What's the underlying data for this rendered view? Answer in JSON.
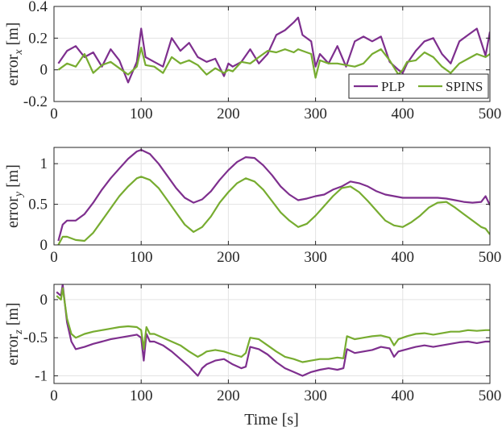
{
  "figure": {
    "x_axis_label": "Time [s]"
  },
  "chart_data": [
    {
      "type": "line",
      "ylabel_base": "error",
      "ylabel_sub": "x",
      "ylabel_unit": "[m]",
      "xlim": [
        0,
        500
      ],
      "ylim": [
        -0.2,
        0.4
      ],
      "xticks": [
        0,
        100,
        200,
        300,
        400,
        500
      ],
      "yticks": [
        -0.2,
        0,
        0.2,
        0.4
      ],
      "ytick_labels": [
        "-0.2",
        "0",
        "0.2",
        "0.4"
      ],
      "grid": true,
      "legend": {
        "position": "bottom-right",
        "entries": [
          "PLP",
          "SPINS"
        ]
      },
      "x": [
        5,
        15,
        25,
        35,
        45,
        55,
        65,
        75,
        85,
        95,
        100,
        105,
        115,
        125,
        135,
        145,
        155,
        165,
        175,
        185,
        195,
        200,
        205,
        215,
        225,
        235,
        245,
        255,
        265,
        275,
        280,
        285,
        295,
        300,
        305,
        315,
        325,
        335,
        345,
        355,
        365,
        375,
        385,
        395,
        400,
        405,
        415,
        425,
        435,
        445,
        455,
        465,
        475,
        485,
        495,
        500
      ],
      "series": [
        {
          "name": "PLP",
          "color": "#7E2F8E",
          "values": [
            0.04,
            0.12,
            0.15,
            0.08,
            0.11,
            0.02,
            0.13,
            0.06,
            -0.08,
            0.05,
            0.26,
            0.08,
            0.05,
            0.02,
            0.2,
            0.12,
            0.17,
            0.08,
            0.05,
            0.07,
            -0.04,
            0.04,
            0.02,
            0.05,
            0.13,
            0.04,
            0.1,
            0.22,
            0.25,
            0.3,
            0.33,
            0.22,
            0.18,
            0.02,
            0.1,
            0.04,
            0.15,
            0.02,
            0.18,
            0.21,
            0.18,
            0.21,
            0.05,
            0.0,
            -0.02,
            0.04,
            0.12,
            0.18,
            0.2,
            0.1,
            0.04,
            0.18,
            0.22,
            0.26,
            0.09,
            0.24
          ]
        },
        {
          "name": "SPINS",
          "color": "#77AC30",
          "values": [
            0.0,
            0.04,
            0.02,
            0.1,
            -0.02,
            0.03,
            0.05,
            0.01,
            -0.03,
            0.02,
            0.14,
            0.03,
            0.02,
            -0.02,
            0.08,
            0.04,
            0.06,
            0.03,
            -0.03,
            0.01,
            -0.02,
            0.0,
            -0.01,
            0.05,
            0.04,
            0.08,
            0.12,
            0.11,
            0.13,
            0.11,
            0.13,
            0.12,
            0.1,
            -0.05,
            0.06,
            0.04,
            0.04,
            0.03,
            0.02,
            0.04,
            0.1,
            0.13,
            0.06,
            -0.03,
            0.0,
            0.05,
            0.06,
            0.11,
            0.08,
            0.02,
            -0.02,
            0.04,
            0.07,
            0.1,
            0.08,
            0.1
          ]
        }
      ]
    },
    {
      "type": "line",
      "ylabel_base": "error",
      "ylabel_sub": "y",
      "ylabel_unit": "[m]",
      "xlim": [
        0,
        500
      ],
      "ylim": [
        0,
        1.2
      ],
      "xticks": [
        0,
        100,
        200,
        300,
        400,
        500
      ],
      "yticks": [
        0,
        0.5,
        1
      ],
      "ytick_labels": [
        "0",
        "0.5",
        "1"
      ],
      "grid": true,
      "x": [
        5,
        10,
        15,
        25,
        35,
        45,
        55,
        65,
        75,
        85,
        95,
        100,
        110,
        120,
        130,
        140,
        150,
        160,
        170,
        180,
        190,
        200,
        210,
        220,
        230,
        240,
        250,
        260,
        270,
        280,
        290,
        300,
        310,
        320,
        330,
        340,
        350,
        360,
        370,
        380,
        390,
        400,
        410,
        420,
        430,
        440,
        450,
        460,
        470,
        480,
        490,
        495,
        500
      ],
      "series": [
        {
          "name": "PLP",
          "color": "#7E2F8E",
          "values": [
            0.05,
            0.25,
            0.3,
            0.3,
            0.38,
            0.52,
            0.68,
            0.82,
            0.94,
            1.06,
            1.15,
            1.17,
            1.12,
            1.0,
            0.85,
            0.7,
            0.58,
            0.52,
            0.56,
            0.66,
            0.8,
            0.92,
            1.02,
            1.08,
            1.07,
            0.98,
            0.86,
            0.72,
            0.62,
            0.55,
            0.57,
            0.6,
            0.62,
            0.68,
            0.72,
            0.78,
            0.76,
            0.72,
            0.66,
            0.62,
            0.6,
            0.58,
            0.58,
            0.58,
            0.58,
            0.58,
            0.57,
            0.55,
            0.53,
            0.52,
            0.53,
            0.6,
            0.49
          ]
        },
        {
          "name": "SPINS",
          "color": "#77AC30",
          "values": [
            0.0,
            0.1,
            0.1,
            0.06,
            0.05,
            0.15,
            0.3,
            0.45,
            0.6,
            0.72,
            0.82,
            0.84,
            0.8,
            0.7,
            0.55,
            0.4,
            0.25,
            0.16,
            0.22,
            0.35,
            0.52,
            0.65,
            0.76,
            0.82,
            0.78,
            0.68,
            0.54,
            0.4,
            0.3,
            0.22,
            0.26,
            0.36,
            0.48,
            0.6,
            0.7,
            0.72,
            0.65,
            0.54,
            0.42,
            0.3,
            0.24,
            0.22,
            0.28,
            0.36,
            0.46,
            0.52,
            0.53,
            0.46,
            0.38,
            0.3,
            0.22,
            0.2,
            0.13
          ]
        }
      ]
    },
    {
      "type": "line",
      "ylabel_base": "error",
      "ylabel_sub": "z",
      "ylabel_unit": "[m]",
      "xlim": [
        0,
        500
      ],
      "ylim": [
        -1.1,
        0.2
      ],
      "xticks": [
        0,
        100,
        200,
        300,
        400,
        500
      ],
      "xtick_labels": [
        "0",
        "100",
        "200",
        "300",
        "400",
        "500"
      ],
      "yticks": [
        -1,
        -0.5,
        0
      ],
      "ytick_labels": [
        "-1",
        "-0.5",
        "0"
      ],
      "grid": true,
      "x": [
        3,
        8,
        10,
        15,
        20,
        25,
        35,
        45,
        55,
        65,
        75,
        85,
        95,
        100,
        103,
        106,
        110,
        115,
        125,
        135,
        145,
        155,
        165,
        170,
        175,
        185,
        195,
        205,
        215,
        220,
        225,
        235,
        245,
        255,
        265,
        275,
        285,
        295,
        305,
        315,
        325,
        332,
        336,
        345,
        355,
        365,
        375,
        385,
        390,
        395,
        405,
        415,
        425,
        435,
        445,
        455,
        465,
        475,
        485,
        495,
        500
      ],
      "series": [
        {
          "name": "PLP",
          "color": "#7E2F8E",
          "values": [
            0.1,
            0.05,
            0.2,
            -0.3,
            -0.55,
            -0.65,
            -0.62,
            -0.58,
            -0.55,
            -0.52,
            -0.5,
            -0.48,
            -0.46,
            -0.5,
            -0.8,
            -0.45,
            -0.55,
            -0.55,
            -0.6,
            -0.68,
            -0.78,
            -0.88,
            -1.0,
            -0.9,
            -0.85,
            -0.8,
            -0.78,
            -0.85,
            -0.9,
            -0.88,
            -0.62,
            -0.65,
            -0.72,
            -0.82,
            -0.9,
            -0.95,
            -1.0,
            -0.95,
            -0.92,
            -0.9,
            -0.92,
            -0.9,
            -0.65,
            -0.7,
            -0.68,
            -0.66,
            -0.62,
            -0.64,
            -0.75,
            -0.68,
            -0.65,
            -0.62,
            -0.6,
            -0.62,
            -0.6,
            -0.58,
            -0.56,
            -0.55,
            -0.57,
            -0.55,
            -0.55
          ]
        },
        {
          "name": "SPINS",
          "color": "#77AC30",
          "values": [
            0.05,
            0.0,
            0.15,
            -0.25,
            -0.45,
            -0.5,
            -0.45,
            -0.42,
            -0.4,
            -0.38,
            -0.36,
            -0.35,
            -0.36,
            -0.4,
            -0.65,
            -0.36,
            -0.45,
            -0.45,
            -0.5,
            -0.55,
            -0.6,
            -0.68,
            -0.75,
            -0.72,
            -0.68,
            -0.66,
            -0.68,
            -0.72,
            -0.75,
            -0.7,
            -0.5,
            -0.52,
            -0.6,
            -0.68,
            -0.75,
            -0.78,
            -0.82,
            -0.8,
            -0.78,
            -0.78,
            -0.76,
            -0.77,
            -0.48,
            -0.52,
            -0.5,
            -0.48,
            -0.47,
            -0.5,
            -0.6,
            -0.52,
            -0.48,
            -0.45,
            -0.44,
            -0.46,
            -0.44,
            -0.42,
            -0.42,
            -0.4,
            -0.41,
            -0.4,
            -0.4
          ]
        }
      ]
    }
  ]
}
